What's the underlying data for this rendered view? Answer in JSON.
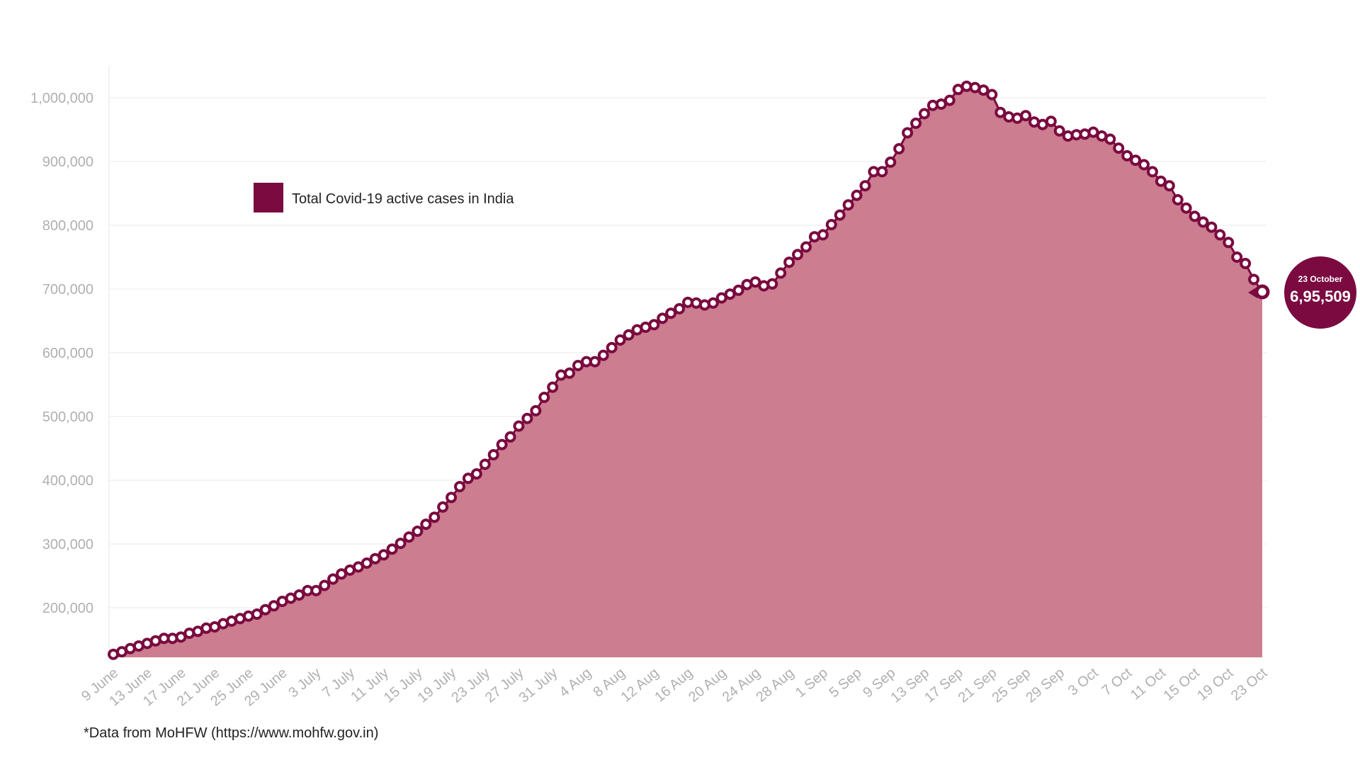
{
  "chart_data": {
    "type": "area",
    "title": "",
    "xlabel": "",
    "ylabel": "",
    "ylim": [
      120000,
      1045000
    ],
    "y_ticks": [
      200000,
      300000,
      400000,
      500000,
      600000,
      700000,
      800000,
      900000,
      1000000
    ],
    "y_tick_labels": [
      "200,000",
      "300,000",
      "400,000",
      "500,000",
      "600,000",
      "700,000",
      "800,000",
      "900,000",
      "1,000,000"
    ],
    "x_tick_labels": [
      "9 June",
      "13 June",
      "17 June",
      "21 June",
      "25 June",
      "29 June",
      "3 July",
      "7 July",
      "11 July",
      "15 July",
      "19 July",
      "23 July",
      "27 July",
      "31 July",
      "4 Aug",
      "8 Aug",
      "12 Aug",
      "16 Aug",
      "20 Aug",
      "24 Aug",
      "28 Aug",
      "1 Sep",
      "5 Sep",
      "9 Sep",
      "13 Sep",
      "17 Sep",
      "21 Sep",
      "25 Sep",
      "29 Sep",
      "3 Oct",
      "7 Oct",
      "11 Oct",
      "15 Oct",
      "19 Oct",
      "23 Oct"
    ],
    "x_start": "9 June",
    "x_end": "23 October",
    "grid": true,
    "legend_position": "top-left",
    "series": [
      {
        "name": "Total Covid-19 active cases in India",
        "color": "#7a0a3f",
        "fill": "#cc7d8f",
        "values": [
          127000,
          131000,
          136000,
          140000,
          144000,
          148000,
          152000,
          152000,
          154000,
          160000,
          163000,
          168000,
          170000,
          175000,
          179000,
          183000,
          187000,
          190000,
          197000,
          203000,
          210000,
          215000,
          220000,
          227000,
          227000,
          235000,
          245000,
          253000,
          259000,
          264000,
          270000,
          277000,
          283000,
          292000,
          301000,
          311000,
          320000,
          331000,
          342000,
          358000,
          373000,
          390000,
          403000,
          410000,
          425000,
          440000,
          456000,
          468000,
          485000,
          497000,
          509000,
          530000,
          546000,
          565000,
          568000,
          580000,
          586000,
          586000,
          596000,
          608000,
          620000,
          628000,
          636000,
          640000,
          644000,
          654000,
          662000,
          669000,
          679000,
          678000,
          675000,
          678000,
          686000,
          692000,
          698000,
          707000,
          711000,
          705000,
          708000,
          725000,
          742000,
          754000,
          766000,
          782000,
          785000,
          801000,
          816000,
          832000,
          847000,
          862000,
          884000,
          884000,
          899000,
          920000,
          945000,
          960000,
          975000,
          988000,
          990000,
          996000,
          1013000,
          1018000,
          1016000,
          1012000,
          1005000,
          977000,
          970000,
          968000,
          972000,
          962000,
          958000,
          963000,
          948000,
          940000,
          942000,
          943000,
          946000,
          940000,
          935000,
          921000,
          909000,
          902000,
          895000,
          884000,
          869000,
          862000,
          840000,
          827000,
          814000,
          805000,
          797000,
          785000,
          773000,
          750000,
          740000,
          715000,
          695509
        ]
      }
    ],
    "annotation": {
      "date": "23 October",
      "value_label": "6,95,509"
    }
  },
  "footnote": "*Data from MoHFW (https://www.mohfw.gov.in)"
}
